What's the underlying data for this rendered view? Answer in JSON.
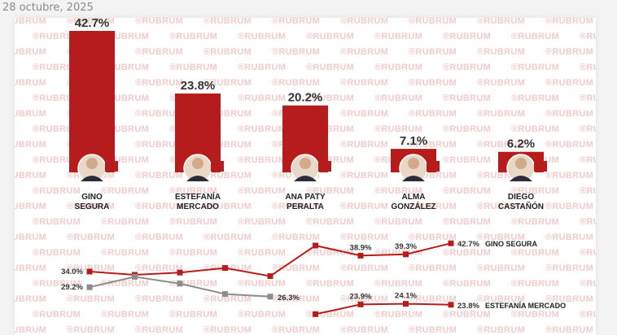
{
  "page": {
    "date": "28 octubre, 2025"
  },
  "watermark": {
    "text": "®RUBRUM"
  },
  "colors": {
    "bar": "#b71c1c",
    "line_primary": "#b71c1c",
    "line_secondary": "#8c8c8c"
  },
  "chart_data": [
    {
      "type": "bar",
      "categories": [
        "GINO\nSEGURA",
        "ESTEFANÍA\nMERCADO",
        "ANA PATY\nPERALTA",
        "ALMA\nGONZÁLEZ",
        "DIEGO\nCASTAÑÓN"
      ],
      "values": [
        42.7,
        23.8,
        20.2,
        7.1,
        6.2
      ],
      "value_labels": [
        "42.7%",
        "23.8%",
        "20.2%",
        "7.1%",
        "6.2%"
      ],
      "ylim": [
        0,
        42.7
      ]
    },
    {
      "type": "line",
      "x_points": 9,
      "series": [
        {
          "name": "GINO SEGURA",
          "color": "#b71c1c",
          "values": [
            34.0,
            33.0,
            33.7,
            35.1,
            32.6,
            42.0,
            38.9,
            39.3,
            42.7
          ],
          "labels": [
            "34.0%",
            "",
            "",
            "",
            "",
            "",
            "38.9%",
            "39.3%",
            "42.7%"
          ]
        },
        {
          "name": "",
          "color": "#8c8c8c",
          "values": [
            29.2,
            32.4,
            30.3,
            27.1,
            26.3
          ],
          "labels": [
            "29.2%",
            "",
            "",
            "",
            "26.3%"
          ]
        },
        {
          "name": "ESTEFANÍA MERCADO",
          "color": "#b71c1c",
          "values": [
            null,
            null,
            null,
            null,
            null,
            20.9,
            23.9,
            24.1,
            23.8
          ],
          "labels": [
            "",
            "",
            "",
            "",
            "",
            "",
            "23.9%",
            "24.1%",
            "23.8%"
          ]
        }
      ]
    }
  ]
}
